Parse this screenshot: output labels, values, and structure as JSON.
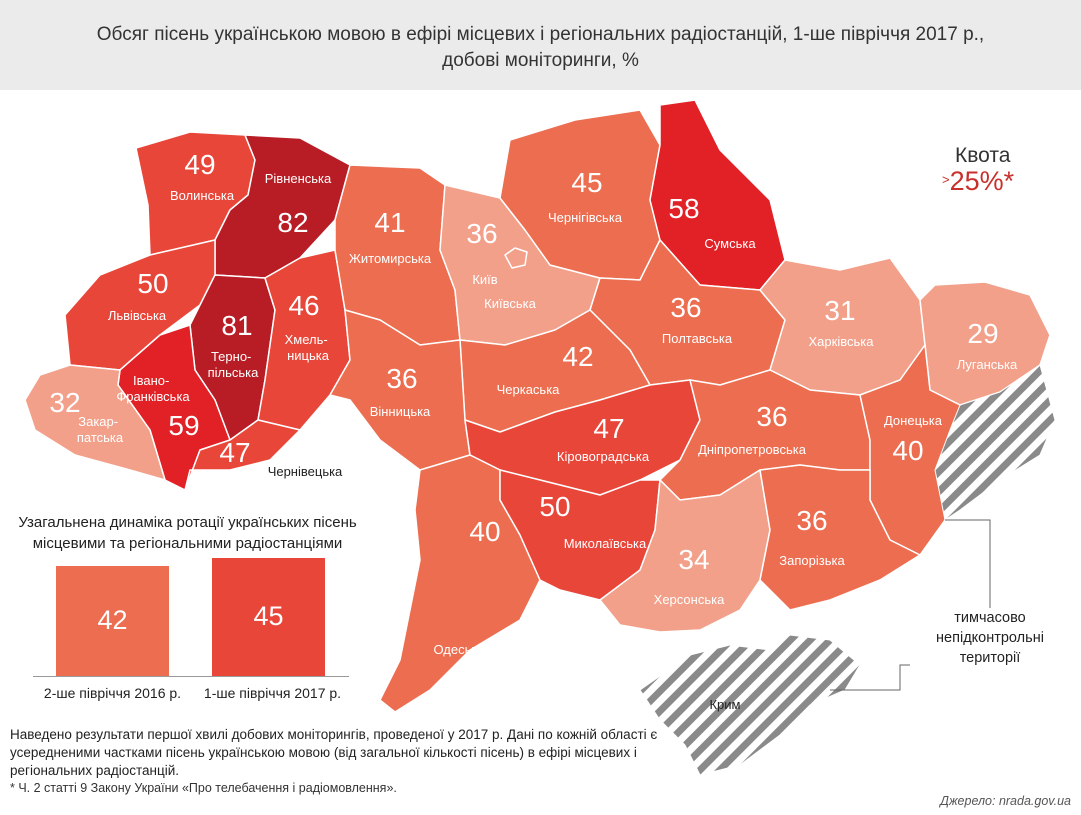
{
  "title": {
    "line1": "Обсяг пісень українською мовою в ефірі місцевих і регіональних радіостанцій, 1-ше півріччя 2017 р.,",
    "line2": "добові моніторинги, %"
  },
  "quota": {
    "label": "Квота",
    "prefix": ">",
    "value": "25%*"
  },
  "colors": {
    "v29_34": "#f2a08a",
    "v36_41": "#ec6d4f",
    "v45_50": "#e9463a",
    "v58_59": "#e12126",
    "v80plus": "#b81c24",
    "occupied_stripe": "#8a8a8a",
    "header_bg": "#ebebeb",
    "quota_red": "#c9302c"
  },
  "regions": [
    {
      "name": "Волинська",
      "value": "49"
    },
    {
      "name": "Рівненська",
      "value": "82"
    },
    {
      "name": "Житомирська",
      "value": "41"
    },
    {
      "name": "Київ",
      "value": "36"
    },
    {
      "name": "Київська",
      "value": ""
    },
    {
      "name": "Чернігівська",
      "value": "45"
    },
    {
      "name": "Сумська",
      "value": "58"
    },
    {
      "name": "Львівська",
      "value": "50"
    },
    {
      "name": "Терно-\nпільська",
      "value": "81"
    },
    {
      "name": "Хмель-\nницька",
      "value": "46"
    },
    {
      "name": "Вінницька",
      "value": "36"
    },
    {
      "name": "Черкаська",
      "value": "42"
    },
    {
      "name": "Полтавська",
      "value": "36"
    },
    {
      "name": "Харківська",
      "value": "31"
    },
    {
      "name": "Луганська",
      "value": "29"
    },
    {
      "name": "Закар-\nпатська",
      "value": "32"
    },
    {
      "name": "Івано-\nФранківська",
      "value": "59"
    },
    {
      "name": "Чернівецька",
      "value": "47"
    },
    {
      "name": "Кіровоградська",
      "value": "47"
    },
    {
      "name": "Дніпропетровська",
      "value": "36"
    },
    {
      "name": "Донецька",
      "value": "40"
    },
    {
      "name": "Одеська",
      "value": "40"
    },
    {
      "name": "Миколаївська",
      "value": "50"
    },
    {
      "name": "Херсонська",
      "value": "34"
    },
    {
      "name": "Запорізька",
      "value": "36"
    },
    {
      "name": "Крим",
      "value": ""
    }
  ],
  "occupied_label": "тимчасово непідконтрольні території",
  "dynamics": {
    "title": "Узагальнена динаміка ротації українських пісень місцевими та регіональними радіостанціями",
    "bars": [
      {
        "label": "2-ше півріччя 2016 р.",
        "value": 42,
        "color": "#ec6d4f"
      },
      {
        "label": "1-ше півріччя 2017 р.",
        "value": 45,
        "color": "#e9463a"
      }
    ]
  },
  "note": "Наведено результати першої хвилі добових моніторингів, проведеної у 2017 р. Дані по кожній області є усередненими частками пісень українською мовою (від загальної кількості пісень) в ефірі місцевих і регіональних радіостанцій.",
  "footnote": "* Ч. 2 статті 9 Закону України «Про телебачення і радіомовлення».",
  "source": "Джерело: nrada.gov.ua"
}
